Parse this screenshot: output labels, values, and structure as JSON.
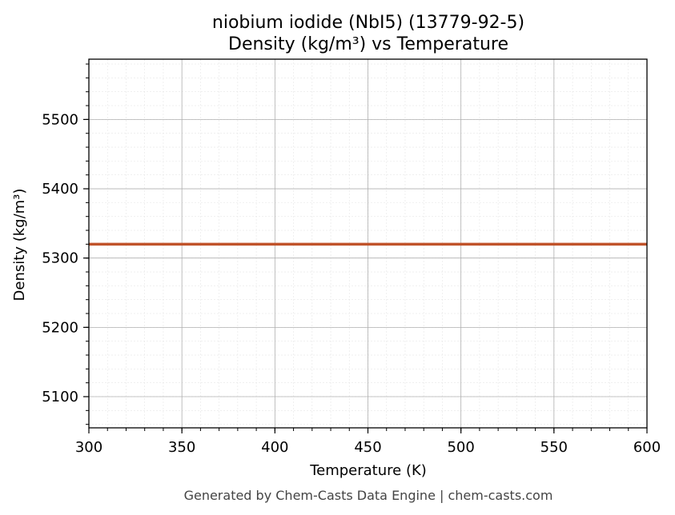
{
  "chart_data": {
    "type": "line",
    "title": [
      "niobium iodide (NbI5) (13779-92-5)",
      "Density (kg/m³) vs Temperature"
    ],
    "xlabel": "Temperature (K)",
    "ylabel": "Density (kg/m³)",
    "xlim": [
      300,
      600
    ],
    "ylim": [
      5055,
      5587
    ],
    "x_ticks": [
      300,
      350,
      400,
      450,
      500,
      550,
      600
    ],
    "y_ticks": [
      5100,
      5200,
      5300,
      5400,
      5500
    ],
    "grid": true,
    "minor_grid": true,
    "series": [
      {
        "x": [
          300,
          600
        ],
        "values": [
          5320,
          5320
        ],
        "color": "#c0532a"
      }
    ]
  },
  "footer": "Generated by Chem-Casts Data Engine | chem-casts.com"
}
